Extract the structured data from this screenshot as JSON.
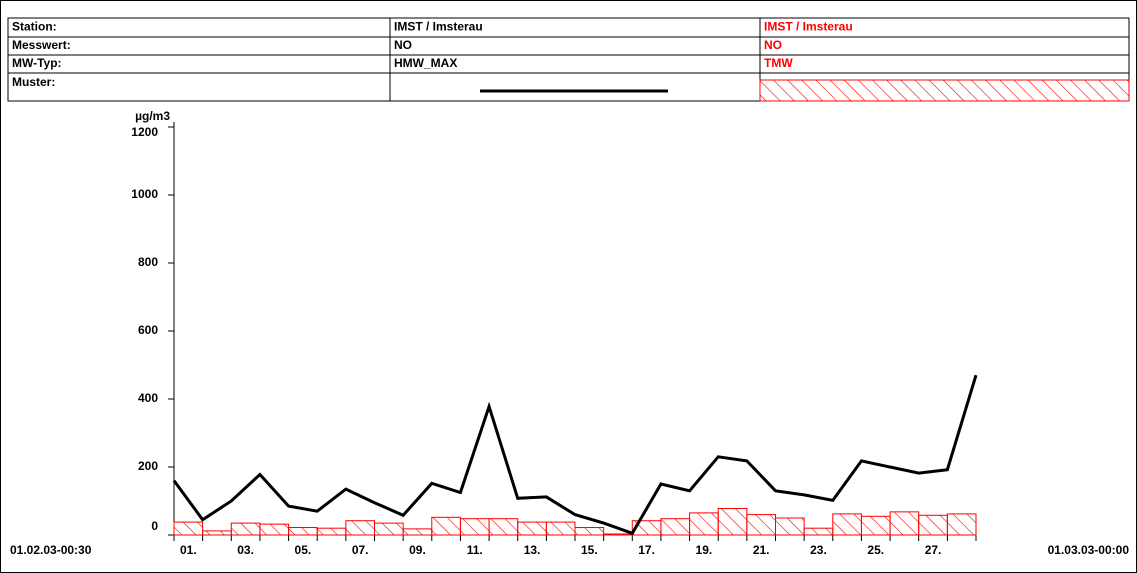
{
  "legend_table": {
    "rows": [
      [
        "Station:",
        "IMST / Imsterau",
        "IMST / Imsterau"
      ],
      [
        "Messwert:",
        "NO",
        "NO"
      ],
      [
        "MW-Typ:",
        "HMW_MAX",
        "TMW"
      ],
      [
        "Muster:"
      ]
    ]
  },
  "chart_data": {
    "type": "line_bar",
    "y_unit": "µg/m3",
    "start_label": "01.02.03-00:30",
    "end_label": "01.03.03-00:00",
    "ylim": [
      0,
      1200
    ],
    "yticks": [
      0,
      200,
      400,
      600,
      800,
      1000,
      1200
    ],
    "categories": [
      "01.",
      null,
      "03.",
      null,
      "05.",
      null,
      "07.",
      null,
      "09.",
      null,
      "11.",
      null,
      "13.",
      null,
      "15.",
      null,
      "17.",
      null,
      "19.",
      null,
      "21.",
      null,
      "23.",
      null,
      "25.",
      null,
      "27.",
      null
    ],
    "series": [
      {
        "name": "HMW_MAX",
        "color": "#000000",
        "kind": "line",
        "x": [
          0,
          1,
          2,
          3,
          4,
          5,
          6,
          7,
          8,
          9,
          10,
          11,
          12,
          13,
          14,
          15,
          16,
          17,
          18,
          19,
          20,
          21,
          22,
          23,
          24,
          25,
          26,
          27,
          28
        ],
        "values": [
          160,
          45,
          100,
          178,
          85,
          70,
          135,
          95,
          58,
          152,
          125,
          378,
          108,
          112,
          60,
          35,
          5,
          150,
          130,
          230,
          218,
          130,
          118,
          102,
          218,
          200,
          182,
          192,
          470
        ]
      },
      {
        "name": "TMW",
        "color": "#ff0000",
        "kind": "bar",
        "values": [
          38,
          12,
          35,
          32,
          22,
          20,
          42,
          35,
          18,
          52,
          48,
          48,
          38,
          38,
          22,
          3,
          42,
          48,
          65,
          78,
          60,
          50,
          20,
          62,
          55,
          68,
          58,
          62
        ]
      }
    ]
  }
}
